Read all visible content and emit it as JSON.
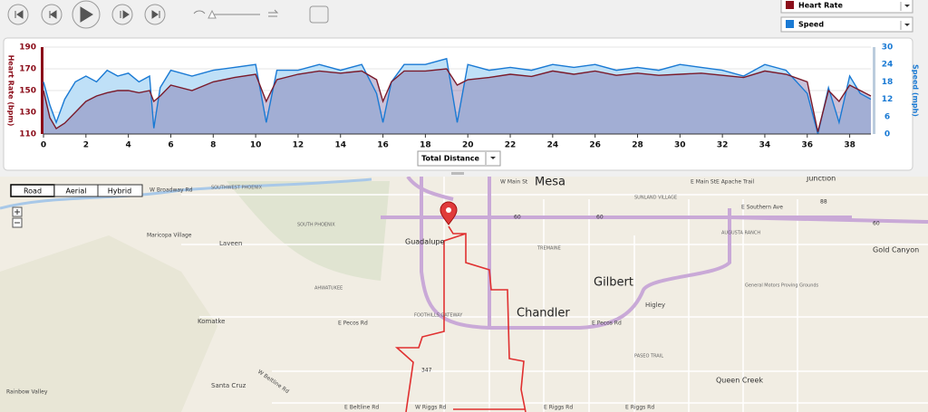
{
  "legend": [
    "Heart Rate",
    "Speed"
  ],
  "x_selector": "Total Distance",
  "chart_data": {
    "type": "area",
    "ylabel": "Heart Rate (bpm)",
    "y2label": "Speed (mph)",
    "x": [
      0,
      0.3,
      0.6,
      1,
      1.5,
      2,
      2.5,
      3,
      3.5,
      4,
      4.5,
      5,
      5.2,
      5.5,
      6,
      7,
      8,
      9,
      10,
      10.5,
      11,
      12,
      13,
      14,
      15,
      15.7,
      16,
      16.4,
      17,
      18,
      19,
      19.5,
      20,
      21,
      22,
      23,
      24,
      25,
      26,
      27,
      28,
      29,
      30,
      31,
      32,
      33,
      34,
      35,
      36,
      36.5,
      37,
      37.5,
      38,
      38.5,
      39
    ],
    "series": [
      {
        "name": "Heart Rate",
        "color": "#7a1a2a",
        "values": [
          150,
          125,
          115,
          120,
          130,
          140,
          145,
          148,
          150,
          150,
          148,
          150,
          140,
          145,
          155,
          150,
          158,
          162,
          165,
          140,
          160,
          165,
          168,
          166,
          168,
          160,
          140,
          158,
          168,
          168,
          170,
          155,
          160,
          162,
          165,
          163,
          168,
          165,
          168,
          164,
          166,
          164,
          165,
          166,
          164,
          162,
          168,
          165,
          158,
          112,
          150,
          140,
          155,
          150,
          145
        ]
      },
      {
        "name": "Speed",
        "color": "#1a7ad4",
        "axis": "y2",
        "values": [
          18,
          10,
          4,
          12,
          18,
          20,
          18,
          22,
          20,
          21,
          18,
          20,
          2,
          16,
          22,
          20,
          22,
          23,
          24,
          4,
          22,
          22,
          24,
          22,
          24,
          14,
          4,
          18,
          24,
          24,
          26,
          4,
          24,
          22,
          23,
          22,
          24,
          23,
          24,
          22,
          23,
          22,
          24,
          23,
          22,
          20,
          24,
          22,
          14,
          0,
          16,
          4,
          20,
          14,
          12
        ]
      }
    ],
    "xlim": [
      0,
      39
    ],
    "xticks": [
      0,
      2,
      4,
      6,
      8,
      10,
      12,
      14,
      16,
      18,
      20,
      22,
      24,
      26,
      28,
      30,
      32,
      34,
      36,
      38
    ],
    "ylim": [
      110,
      190
    ],
    "yticks": [
      110,
      130,
      150,
      170,
      190
    ],
    "y2lim": [
      0,
      30
    ],
    "y2ticks": [
      0,
      6,
      12,
      18,
      24,
      30
    ],
    "grid": true
  },
  "map": {
    "buttons": [
      "Road",
      "Aerial",
      "Hybrid"
    ],
    "labels": [
      "Mesa",
      "Gilbert",
      "Chandler",
      "Guadalupe",
      "Laveen",
      "Maricopa Village",
      "Komatke",
      "Santa Cruz",
      "Rainbow Valley",
      "Queen Creek",
      "Gold Canyon",
      "Higley",
      "Junction",
      "AHWATUKEE",
      "SOUTH PHOENIX",
      "SOUTHWEST PHOENIX",
      "FOOTHILLS GATEWAY",
      "TREMAINE",
      "SUNLAND VILLAGE",
      "AUGUSTA RANCH",
      "PASEO TRAIL",
      "General Motors Proving Grounds",
      "W Main St",
      "E Main St",
      "E Apache Trail",
      "E Southern Ave",
      "E Pecos Rd",
      "E Pecos Rd",
      "W Beltline Rd",
      "E Beltline Rd",
      "W Riggs Rd",
      "E Riggs Rd",
      "E Riggs Rd",
      "W Broadway Rd",
      "60",
      "60",
      "60",
      "88",
      "347"
    ]
  }
}
